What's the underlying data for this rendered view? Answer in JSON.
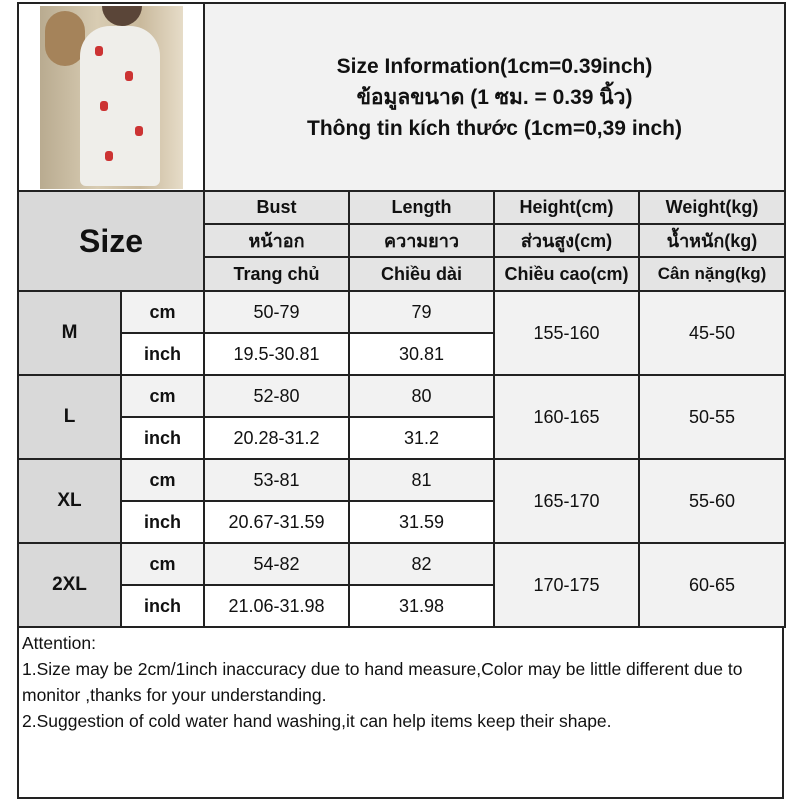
{
  "title": {
    "line1": "Size Information(1cm=0.39inch)",
    "line2": "ข้อมูลขนาด (1 ซม. = 0.39 นิ้ว)",
    "line3": "Thông tin kích thước (1cm=0,39 inch)"
  },
  "header": {
    "size_label": "Size",
    "columns": [
      {
        "en": "Bust",
        "th": "หน้าอก",
        "vi": "Trang chủ"
      },
      {
        "en": "Length",
        "th": "ความยาว",
        "vi": "Chiều dài"
      },
      {
        "en": "Height(cm)",
        "th": "ส่วนสูง(cm)",
        "vi": "Chiều cao(cm)"
      },
      {
        "en": "Weight(kg)",
        "th": "น้ำหนัก(kg)",
        "vi": "Cân nặng(kg)"
      }
    ]
  },
  "units": {
    "cm": "cm",
    "inch": "inch"
  },
  "rows": [
    {
      "size": "M",
      "bust_cm": "50-79",
      "length_cm": "79",
      "bust_in": "19.5-30.81",
      "length_in": "30.81",
      "height": "155-160",
      "weight": "45-50"
    },
    {
      "size": "L",
      "bust_cm": "52-80",
      "length_cm": "80",
      "bust_in": "20.28-31.2",
      "length_in": "31.2",
      "height": "160-165",
      "weight": "50-55"
    },
    {
      "size": "XL",
      "bust_cm": "53-81",
      "length_cm": "81",
      "bust_in": "20.67-31.59",
      "length_in": "31.59",
      "height": "165-170",
      "weight": "55-60"
    },
    {
      "size": "2XL",
      "bust_cm": "54-82",
      "length_cm": "82",
      "bust_in": "21.06-31.98",
      "length_in": "31.98",
      "height": "170-175",
      "weight": "60-65"
    }
  ],
  "attention": {
    "heading": "Attention:",
    "note1": "1.Size may be 2cm/1inch inaccuracy due to hand measure,Color may be little different due to monitor ,thanks for your understanding.",
    "note2": "2.Suggestion of cold water hand washing,it can help items keep their shape."
  }
}
